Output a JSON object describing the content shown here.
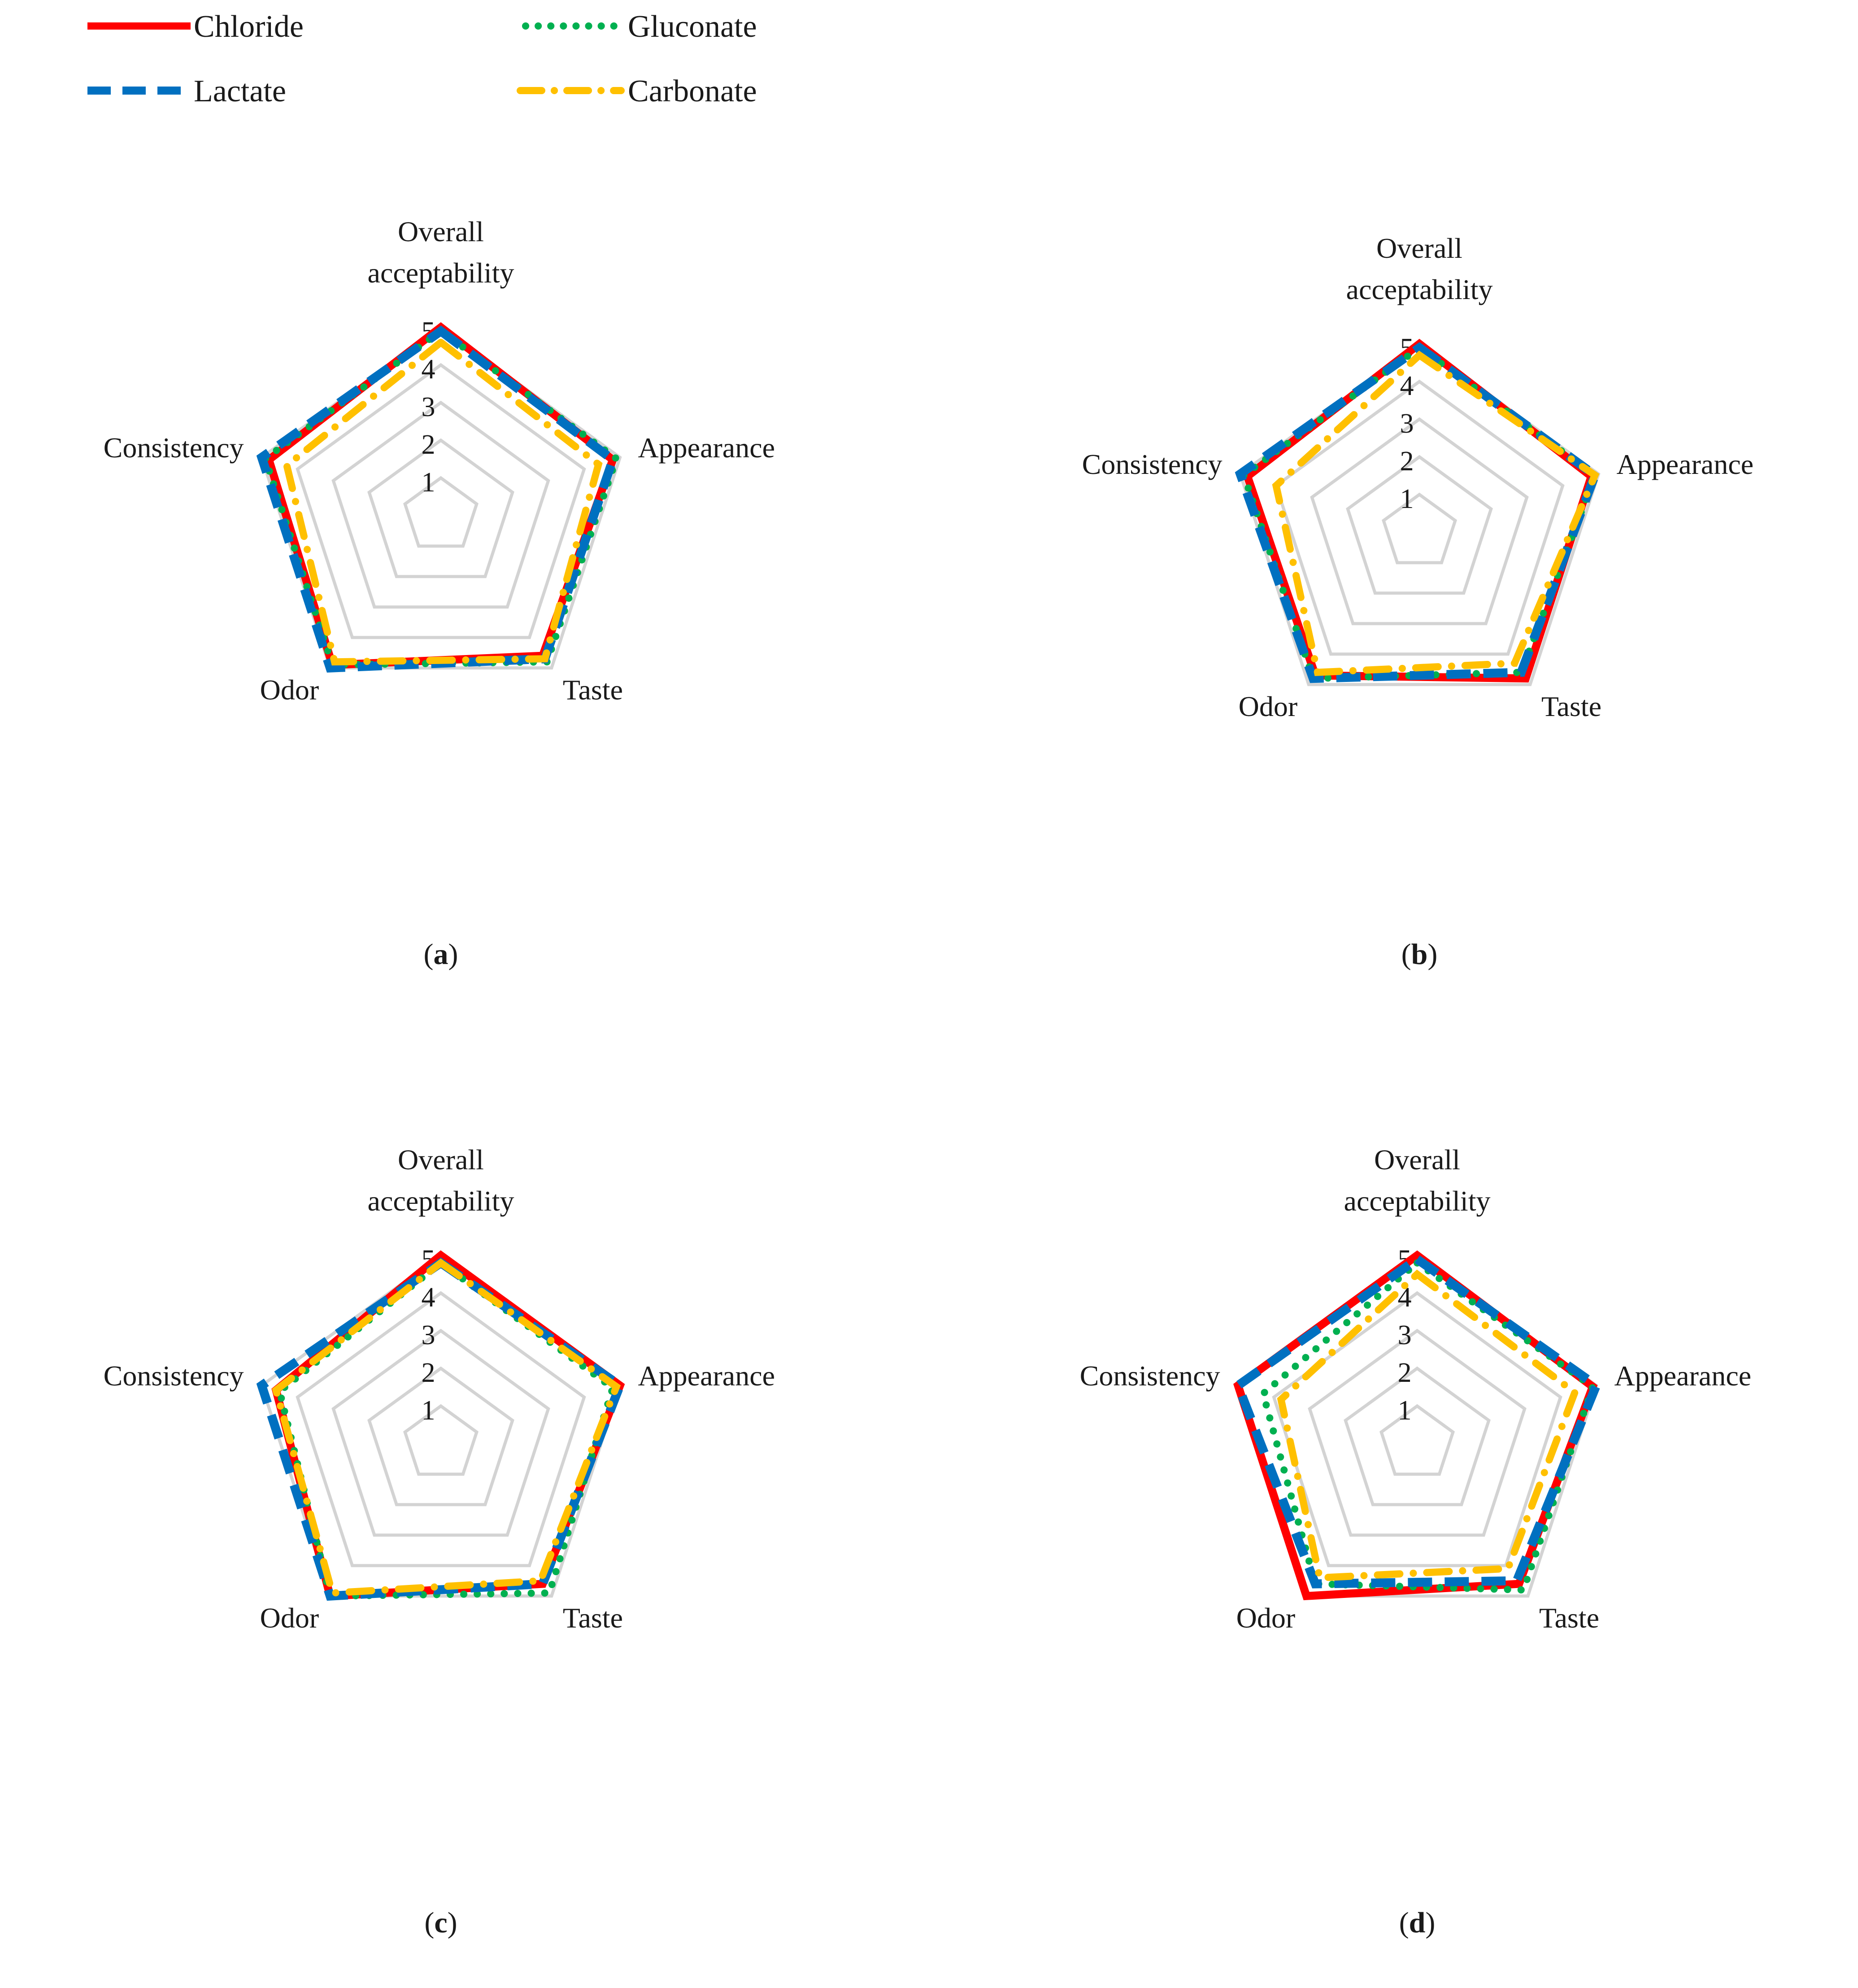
{
  "legend": {
    "items": [
      {
        "name": "Chloride",
        "color": "#ff0000",
        "style": "solid"
      },
      {
        "name": "Gluconate",
        "color": "#00b050",
        "style": "dotted"
      },
      {
        "name": "Lactate",
        "color": "#0070c0",
        "style": "dashed"
      },
      {
        "name": "Carbonate",
        "color": "#ffc000",
        "style": "dashdot"
      }
    ]
  },
  "chart_data": [
    {
      "type": "radar",
      "caption_letter": "a",
      "axes": [
        "Overall acceptability",
        "Appearance",
        "Taste",
        "Odor",
        "Consistency"
      ],
      "ticks": [
        "1",
        "2",
        "3",
        "4",
        "5"
      ],
      "rmin": 0,
      "rmax": 5,
      "series": [
        {
          "name": "Chloride",
          "values": [
            5.0,
            4.8,
            4.6,
            4.9,
            4.8
          ]
        },
        {
          "name": "Gluconate",
          "values": [
            4.9,
            4.9,
            4.8,
            4.9,
            4.9
          ]
        },
        {
          "name": "Lactate",
          "values": [
            4.9,
            4.8,
            4.7,
            5.0,
            5.0
          ]
        },
        {
          "name": "Carbonate",
          "values": [
            4.6,
            4.4,
            4.7,
            4.8,
            4.3
          ]
        }
      ]
    },
    {
      "type": "radar",
      "caption_letter": "b",
      "axes": [
        "Overall acceptability",
        "Appearance",
        "Taste",
        "Odor",
        "Consistency"
      ],
      "ticks": [
        "1",
        "2",
        "3",
        "4",
        "5"
      ],
      "rmin": 0,
      "rmax": 5,
      "series": [
        {
          "name": "Chloride",
          "values": [
            5.0,
            4.8,
            4.8,
            4.7,
            4.8
          ]
        },
        {
          "name": "Gluconate",
          "values": [
            4.9,
            4.9,
            4.6,
            4.8,
            4.9
          ]
        },
        {
          "name": "Lactate",
          "values": [
            4.9,
            4.9,
            4.6,
            4.8,
            5.0
          ]
        },
        {
          "name": "Carbonate",
          "values": [
            4.7,
            4.9,
            4.3,
            4.6,
            4.0
          ]
        }
      ]
    },
    {
      "type": "radar",
      "caption_letter": "c",
      "axes": [
        "Overall acceptability",
        "Appearance",
        "Taste",
        "Odor",
        "Consistency"
      ],
      "ticks": [
        "1",
        "2",
        "3",
        "4",
        "5"
      ],
      "rmin": 0,
      "rmax": 5,
      "series": [
        {
          "name": "Chloride",
          "values": [
            5.0,
            5.0,
            4.6,
            5.0,
            4.6
          ]
        },
        {
          "name": "Gluconate",
          "values": [
            4.8,
            4.8,
            4.9,
            5.0,
            4.5
          ]
        },
        {
          "name": "Lactate",
          "values": [
            4.8,
            5.0,
            4.6,
            5.0,
            5.0
          ]
        },
        {
          "name": "Carbonate",
          "values": [
            4.8,
            4.9,
            4.5,
            4.9,
            4.6
          ]
        }
      ]
    },
    {
      "type": "radar",
      "caption_letter": "d",
      "axes": [
        "Overall acceptability",
        "Appearance",
        "Taste",
        "Odor",
        "Consistency"
      ],
      "ticks": [
        "1",
        "2",
        "3",
        "4",
        "5"
      ],
      "rmin": 0,
      "rmax": 5,
      "series": [
        {
          "name": "Chloride",
          "values": [
            5.0,
            4.9,
            4.6,
            5.0,
            5.0
          ]
        },
        {
          "name": "Gluconate",
          "values": [
            4.8,
            4.9,
            4.8,
            4.6,
            4.3
          ]
        },
        {
          "name": "Lactate",
          "values": [
            4.9,
            5.0,
            4.5,
            4.6,
            5.0
          ]
        },
        {
          "name": "Carbonate",
          "values": [
            4.5,
            4.4,
            4.1,
            4.4,
            3.8
          ]
        }
      ]
    }
  ]
}
